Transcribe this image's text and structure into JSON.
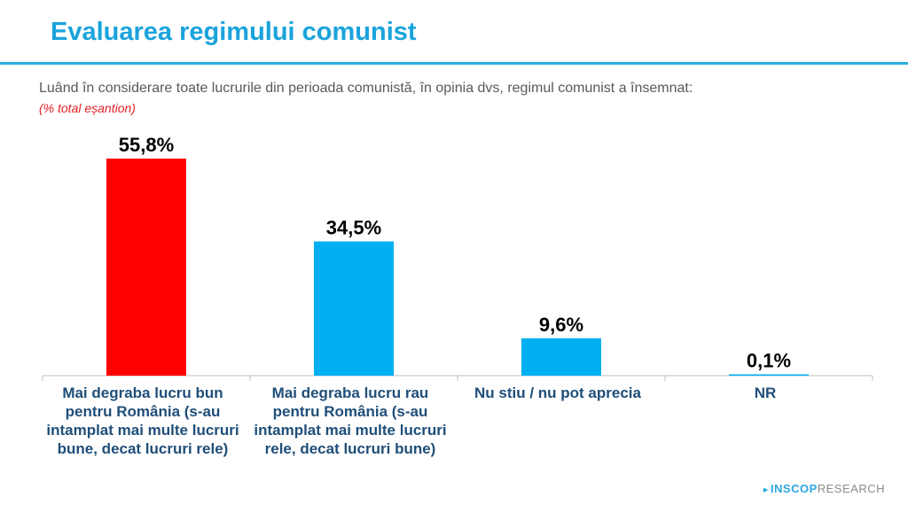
{
  "header": {
    "title": "Evaluarea regimului comunist",
    "question": "Luând în considerare toate lucrurile din perioada comunistă, în opinia dvs, regimul comunist a însemnat:",
    "sample_note": "(% total eșantion)"
  },
  "chart_data": {
    "type": "bar",
    "categories": [
      "Mai degraba lucru bun pentru România (s-au intamplat mai multe lucruri bune, decat lucruri rele)",
      "Mai degraba lucru rau pentru România (s-au intamplat mai multe lucruri rele, decat lucruri bune)",
      "Nu stiu / nu pot aprecia",
      "NR"
    ],
    "values": [
      55.8,
      34.5,
      9.6,
      0.1
    ],
    "value_labels": [
      "55,8%",
      "34,5%",
      "9,6%",
      "0,1%"
    ],
    "colors": [
      "#ff0000",
      "#00b0f0",
      "#00b0f0",
      "#00b0f0"
    ],
    "ylim": [
      0,
      60
    ],
    "grid": false,
    "legend": "none"
  },
  "footer": {
    "logo_brand": "INSCOP",
    "logo_suffix": "RESEARCH"
  }
}
